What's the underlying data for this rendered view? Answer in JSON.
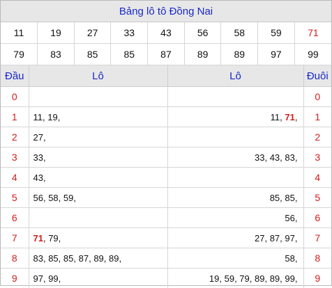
{
  "title": "Bảng lô tô Đồng Nai",
  "numbers_row1": [
    "11",
    "19",
    "27",
    "33",
    "43",
    "56",
    "58",
    "59",
    "71"
  ],
  "numbers_row2": [
    "79",
    "83",
    "85",
    "85",
    "87",
    "89",
    "89",
    "97",
    "99"
  ],
  "highlight_number": "71",
  "header": {
    "dau": "Đầu",
    "lo_left": "Lô",
    "lo_right": "Lô",
    "duoi": "Đuôi"
  },
  "rows": [
    {
      "digit": "0",
      "left": "",
      "right": ""
    },
    {
      "digit": "1",
      "left": "11, 19,",
      "right": "11, 71,"
    },
    {
      "digit": "2",
      "left": "27,",
      "right": ""
    },
    {
      "digit": "3",
      "left": "33,",
      "right": "33, 43, 83,"
    },
    {
      "digit": "4",
      "left": "43,",
      "right": ""
    },
    {
      "digit": "5",
      "left": "56, 58, 59,",
      "right": "85, 85,"
    },
    {
      "digit": "6",
      "left": "",
      "right": "56,"
    },
    {
      "digit": "7",
      "left": "71, 79,",
      "right": "27, 87, 97,"
    },
    {
      "digit": "8",
      "left": "83, 85, 85, 87, 89, 89,",
      "right": "58,"
    },
    {
      "digit": "9",
      "left": "97, 99,",
      "right": "19, 59, 79, 89, 89, 99,"
    }
  ],
  "colors": {
    "accent_blue": "#1a28c9",
    "highlight_red": "#d41b1b",
    "header_bg": "#e7e7e7"
  }
}
